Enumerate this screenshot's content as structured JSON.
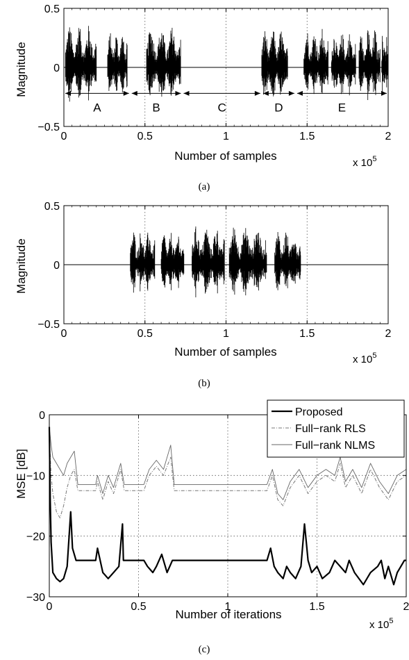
{
  "chart_data": [
    {
      "type": "line",
      "id": "a",
      "caption": "(a)",
      "xlabel": "Number of samples",
      "ylabel": "Magnitude",
      "x_multiplier": "x 10",
      "x_multiplier_exp": "5",
      "xlim": [
        0,
        2
      ],
      "ylim": [
        -0.5,
        0.5
      ],
      "xticks": [
        0,
        0.5,
        1,
        1.5,
        2
      ],
      "xtick_labels": [
        "0",
        "0.5",
        "1",
        "1.5",
        "2"
      ],
      "yticks": [
        -0.5,
        0,
        0.5
      ],
      "ytick_labels": [
        "−0.5",
        "0",
        "0.5"
      ],
      "grid": "dotted vertical",
      "series": [
        {
          "type": "speech-waveform",
          "bursts": [
            [
              0.01,
              0.2,
              0.36
            ],
            [
              0.27,
              0.39,
              0.3
            ],
            [
              0.51,
              0.72,
              0.35
            ],
            [
              1.22,
              1.38,
              0.33
            ],
            [
              1.48,
              1.63,
              0.33
            ],
            [
              1.65,
              1.8,
              0.3
            ],
            [
              1.82,
              1.95,
              0.33
            ],
            [
              1.96,
              2.0,
              0.3
            ]
          ]
        }
      ],
      "annotations": [
        {
          "label": "A",
          "from": 0.0,
          "to": 0.41
        },
        {
          "label": "B",
          "from": 0.41,
          "to": 0.73
        },
        {
          "label": "C",
          "from": 0.73,
          "to": 1.22
        },
        {
          "label": "D",
          "from": 1.22,
          "to": 1.43
        },
        {
          "label": "E",
          "from": 1.43,
          "to": 2.0
        }
      ]
    },
    {
      "type": "line",
      "id": "b",
      "caption": "(b)",
      "xlabel": "Number of samples",
      "ylabel": "Magnitude",
      "x_multiplier": "x 10",
      "x_multiplier_exp": "5",
      "xlim": [
        0,
        2
      ],
      "ylim": [
        -0.5,
        0.5
      ],
      "xticks": [
        0,
        0.5,
        1,
        1.5,
        2
      ],
      "xtick_labels": [
        "0",
        "0.5",
        "1",
        "1.5",
        "2"
      ],
      "yticks": [
        -0.5,
        0,
        0.5
      ],
      "ytick_labels": [
        "−0.5",
        "0",
        "0.5"
      ],
      "grid": "dotted vertical",
      "series": [
        {
          "type": "speech-waveform",
          "bursts": [
            [
              0.41,
              0.56,
              0.3
            ],
            [
              0.6,
              0.74,
              0.28
            ],
            [
              0.79,
              0.99,
              0.33
            ],
            [
              1.02,
              1.25,
              0.33
            ],
            [
              1.3,
              1.46,
              0.3
            ]
          ]
        }
      ]
    },
    {
      "type": "line",
      "id": "c",
      "caption": "(c)",
      "xlabel": "Number of iterations",
      "ylabel": "MSE [dB]",
      "x_multiplier": "x 10",
      "x_multiplier_exp": "5",
      "xlim": [
        0,
        2
      ],
      "ylim": [
        -30,
        0
      ],
      "xticks": [
        0,
        0.5,
        1,
        1.5,
        2
      ],
      "xtick_labels": [
        "0",
        "0.5",
        "1",
        "1.5",
        "2"
      ],
      "yticks": [
        -30,
        -20,
        -10,
        0
      ],
      "ytick_labels": [
        "−30",
        "−20",
        "−10",
        "0"
      ],
      "grid": "dotted both",
      "legend": "top-right",
      "series": [
        {
          "name": "Proposed",
          "style": "solid-thick",
          "x": [
            0,
            0.005,
            0.01,
            0.02,
            0.04,
            0.06,
            0.08,
            0.1,
            0.12,
            0.13,
            0.15,
            0.16,
            0.26,
            0.27,
            0.3,
            0.33,
            0.36,
            0.39,
            0.41,
            0.415,
            0.42,
            0.53,
            0.55,
            0.58,
            0.6,
            0.63,
            0.66,
            0.69,
            0.7,
            0.71,
            1.22,
            1.24,
            1.26,
            1.28,
            1.31,
            1.33,
            1.35,
            1.38,
            1.41,
            1.43,
            1.44,
            1.45,
            1.47,
            1.5,
            1.53,
            1.57,
            1.6,
            1.63,
            1.66,
            1.68,
            1.71,
            1.76,
            1.8,
            1.84,
            1.86,
            1.88,
            1.9,
            1.93,
            1.95,
            1.97,
            1.99,
            2.0
          ],
          "y": [
            -2,
            -14,
            -21,
            -26,
            -27,
            -27.5,
            -27,
            -25,
            -16,
            -22,
            -24,
            -24,
            -24,
            -22,
            -26,
            -27,
            -26,
            -25,
            -18,
            -24,
            -24,
            -24,
            -25,
            -26,
            -25,
            -23,
            -26,
            -24,
            -24,
            -24,
            -24,
            -22,
            -25,
            -26,
            -27,
            -25,
            -26,
            -27,
            -25,
            -18,
            -21,
            -24,
            -26,
            -25,
            -27,
            -26,
            -24,
            -25,
            -26,
            -24,
            -26,
            -28,
            -26,
            -25,
            -24,
            -27,
            -25,
            -28,
            -26,
            -25,
            -24,
            -24
          ]
        },
        {
          "name": "Full−rank RLS",
          "style": "dash-dot",
          "x": [
            0,
            0.01,
            0.02,
            0.04,
            0.06,
            0.08,
            0.1,
            0.12,
            0.14,
            0.16,
            0.17,
            0.26,
            0.27,
            0.3,
            0.33,
            0.36,
            0.4,
            0.42,
            0.53,
            0.56,
            0.6,
            0.64,
            0.68,
            0.7,
            1.22,
            1.25,
            1.28,
            1.31,
            1.35,
            1.4,
            1.45,
            1.5,
            1.55,
            1.6,
            1.63,
            1.66,
            1.7,
            1.75,
            1.8,
            1.85,
            1.9,
            1.95,
            2.0
          ],
          "y": [
            -3,
            -10,
            -13,
            -16,
            -17,
            -15,
            -12,
            -10,
            -9,
            -12.5,
            -12.5,
            -12.5,
            -11,
            -14,
            -11,
            -13,
            -9,
            -12.5,
            -12.5,
            -10,
            -8.5,
            -10,
            -7,
            -12.5,
            -12.5,
            -10,
            -14,
            -15,
            -12,
            -10,
            -13,
            -11,
            -10,
            -11,
            -8,
            -12,
            -10,
            -13,
            -9,
            -12,
            -14,
            -11,
            -10
          ]
        },
        {
          "name": "Full−rank NLMS",
          "style": "thin",
          "x": [
            0,
            0.01,
            0.02,
            0.04,
            0.06,
            0.08,
            0.1,
            0.12,
            0.14,
            0.16,
            0.17,
            0.26,
            0.27,
            0.3,
            0.33,
            0.36,
            0.4,
            0.42,
            0.53,
            0.56,
            0.6,
            0.64,
            0.68,
            0.7,
            1.22,
            1.25,
            1.28,
            1.31,
            1.35,
            1.4,
            1.45,
            1.5,
            1.55,
            1.6,
            1.63,
            1.66,
            1.7,
            1.75,
            1.8,
            1.85,
            1.9,
            1.95,
            2.0
          ],
          "y": [
            -2,
            -5,
            -7,
            -8,
            -9,
            -10,
            -8,
            -7,
            -6,
            -11.5,
            -11.5,
            -11.5,
            -10,
            -13,
            -10,
            -12,
            -8,
            -11.5,
            -11.5,
            -9,
            -7.5,
            -9,
            -5,
            -11.5,
            -11.5,
            -9,
            -13,
            -14,
            -11,
            -9,
            -12,
            -10,
            -9,
            -10,
            -7,
            -11,
            -9,
            -12,
            -8,
            -11,
            -13,
            -10,
            -9
          ]
        }
      ]
    }
  ]
}
